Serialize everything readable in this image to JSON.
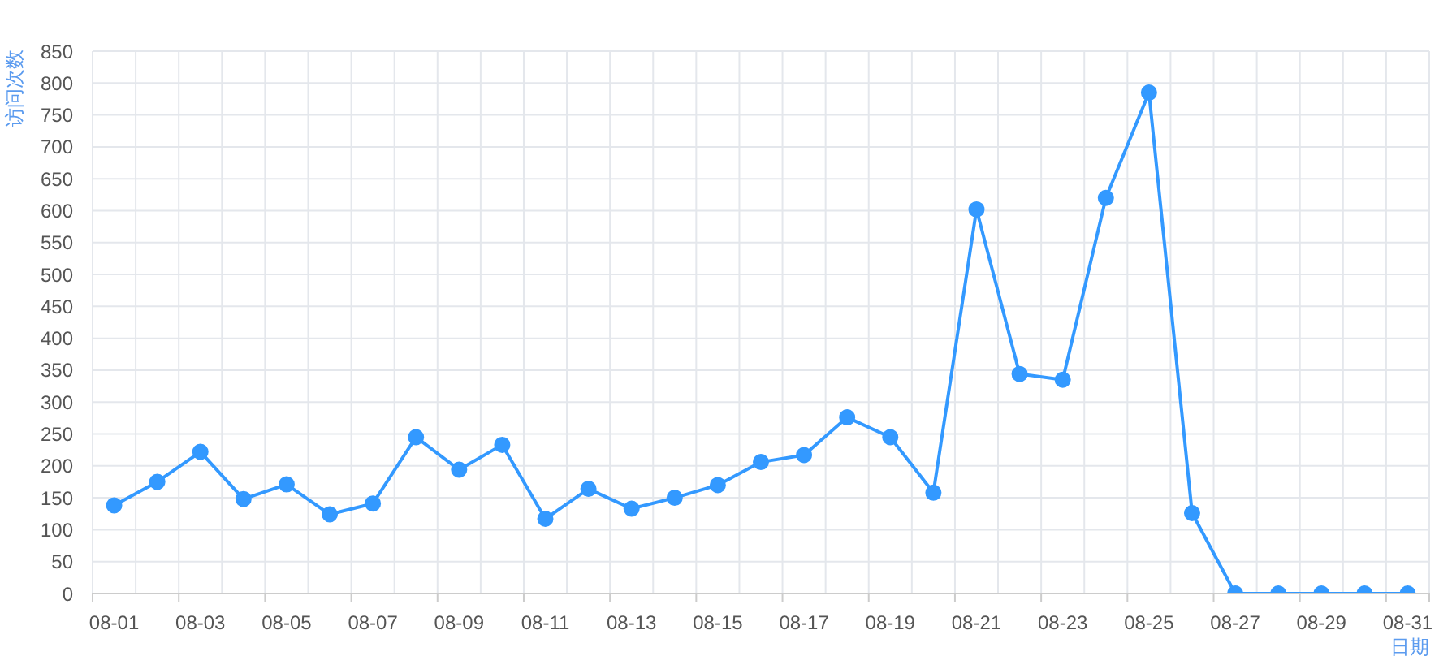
{
  "chart_data": {
    "type": "line",
    "xlabel": "日期",
    "ylabel": "访问次数",
    "categories": [
      "08-01",
      null,
      "08-03",
      null,
      "08-05",
      null,
      "08-07",
      null,
      "08-09",
      null,
      "08-11",
      null,
      "08-13",
      null,
      "08-15",
      null,
      "08-17",
      null,
      "08-19",
      null,
      "08-21",
      null,
      "08-23",
      null,
      "08-25",
      null,
      "08-27",
      null,
      "08-29",
      null,
      "08-31"
    ],
    "series": [
      {
        "color": "#3399ff",
        "values": [
          138,
          175,
          222,
          148,
          171,
          124,
          141,
          245,
          194,
          233,
          117,
          164,
          133,
          150,
          170,
          206,
          217,
          276,
          245,
          158,
          602,
          344,
          335,
          620,
          785,
          126,
          0,
          0,
          0,
          0,
          0
        ]
      }
    ],
    "ylim": [
      0,
      850
    ],
    "yticks": [
      0,
      50,
      100,
      150,
      200,
      250,
      300,
      350,
      400,
      450,
      500,
      550,
      600,
      650,
      700,
      750,
      800,
      850
    ],
    "grid": true,
    "marker": "circle",
    "line_style": "solid"
  }
}
